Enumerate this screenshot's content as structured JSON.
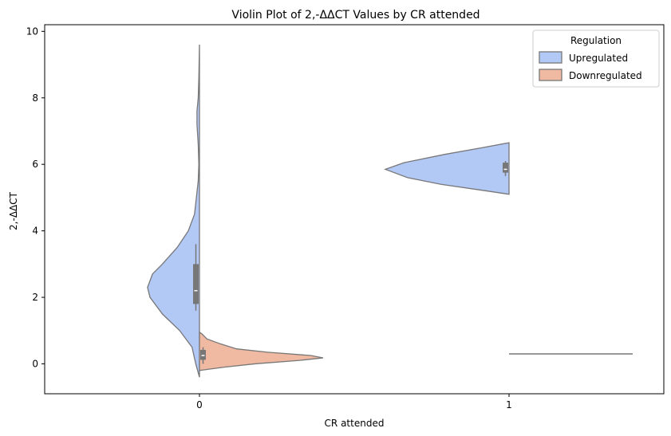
{
  "chart_data": {
    "type": "violin",
    "title": "Violin Plot of 2,-ΔΔCT Values by CR attended",
    "xlabel": "CR attended",
    "ylabel": "2,-ΔΔCT",
    "categories": [
      "0",
      "1"
    ],
    "ylim": [
      -0.9,
      10.2
    ],
    "yticks": [
      0,
      2,
      4,
      6,
      8,
      10
    ],
    "legend": {
      "title": "Regulation",
      "placement": "top-right",
      "entries": [
        "Upregulated",
        "Downregulated"
      ]
    },
    "series": [
      {
        "name": "Upregulated",
        "color": "#b2c8f5",
        "side": "left",
        "groups": [
          {
            "category": "0",
            "range": [
              -0.4,
              9.6
            ],
            "density": [
              [
                -0.4,
                0.0
              ],
              [
                0.0,
                0.03
              ],
              [
                0.5,
                0.06
              ],
              [
                1.0,
                0.16
              ],
              [
                1.5,
                0.3
              ],
              [
                2.0,
                0.4
              ],
              [
                2.3,
                0.42
              ],
              [
                2.7,
                0.38
              ],
              [
                3.0,
                0.3
              ],
              [
                3.5,
                0.18
              ],
              [
                4.0,
                0.09
              ],
              [
                4.5,
                0.04
              ],
              [
                5.0,
                0.025
              ],
              [
                5.5,
                0.01
              ],
              [
                6.0,
                0.005
              ],
              [
                6.6,
                0.01
              ],
              [
                7.2,
                0.02
              ],
              [
                7.6,
                0.02
              ],
              [
                8.0,
                0.01
              ],
              [
                8.6,
                0.005
              ],
              [
                9.6,
                0.0
              ]
            ],
            "box": {
              "q1": 1.8,
              "median": 2.2,
              "q3": 3.0,
              "whisker_low": 1.6,
              "whisker_high": 3.6
            }
          },
          {
            "category": "1",
            "range": [
              5.1,
              6.65
            ],
            "density": [
              [
                5.1,
                0.0
              ],
              [
                5.2,
                0.18
              ],
              [
                5.4,
                0.55
              ],
              [
                5.6,
                0.82
              ],
              [
                5.85,
                1.0
              ],
              [
                6.05,
                0.85
              ],
              [
                6.3,
                0.52
              ],
              [
                6.5,
                0.22
              ],
              [
                6.65,
                0.0
              ]
            ],
            "box": {
              "q1": 5.75,
              "median": 5.85,
              "q3": 6.05,
              "whisker_low": 5.65,
              "whisker_high": 6.1
            }
          }
        ]
      },
      {
        "name": "Downregulated",
        "color": "#efb9a2",
        "side": "right",
        "groups": [
          {
            "category": "0",
            "range": [
              -0.2,
              0.95
            ],
            "density": [
              [
                -0.2,
                0.0
              ],
              [
                -0.1,
                0.2
              ],
              [
                0.0,
                0.45
              ],
              [
                0.1,
                0.8
              ],
              [
                0.18,
                1.0
              ],
              [
                0.25,
                0.9
              ],
              [
                0.35,
                0.55
              ],
              [
                0.45,
                0.3
              ],
              [
                0.6,
                0.17
              ],
              [
                0.75,
                0.06
              ],
              [
                0.9,
                0.02
              ],
              [
                0.95,
                0.0
              ]
            ],
            "box": {
              "q1": 0.12,
              "median": 0.25,
              "q3": 0.42,
              "whisker_low": 0.0,
              "whisker_high": 0.5
            }
          },
          {
            "category": "1",
            "range": [
              0.3,
              0.3
            ],
            "density": [],
            "box": null
          }
        ]
      }
    ]
  }
}
